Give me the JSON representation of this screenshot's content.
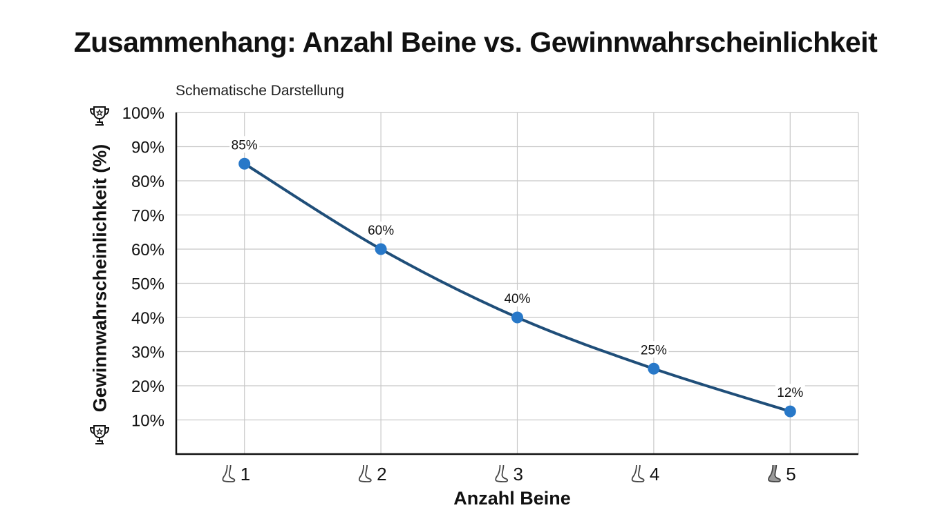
{
  "chart_data": {
    "type": "line",
    "title": "Zusammenhang: Anzahl Beine vs. Gewinnwahrscheinlichkeit",
    "subtitle": "Schematische Darstellung",
    "xlabel": "Anzahl Beine",
    "ylabel": "Gewinnwahrscheinlichkeit (%)",
    "x": [
      1,
      2,
      3,
      4,
      5
    ],
    "x_tick_labels": [
      "1",
      "2",
      "3",
      "4",
      "5"
    ],
    "y_tick_labels": [
      "100%",
      "90%",
      "80%",
      "70%",
      "60%",
      "50%",
      "40%",
      "30%",
      "20%",
      "10%"
    ],
    "y_ticks": [
      100,
      90,
      80,
      70,
      60,
      50,
      40,
      30,
      20,
      10
    ],
    "ylim": [
      0,
      100
    ],
    "xlim": [
      0.5,
      5.5
    ],
    "series": [
      {
        "values": [
          85,
          60,
          40,
          25,
          12.5
        ],
        "data_labels": [
          "85%",
          "60%",
          "40%",
          "25%",
          "12%"
        ]
      }
    ],
    "grid": true,
    "colors": {
      "line": "#1f4e79",
      "marker": "#2878c8",
      "grid": "#c8c8c8",
      "axis": "#111111",
      "leg_icon": "#444444",
      "leg_icon_last": "#9a9a9a"
    },
    "icons": {
      "y_axis_top": "trophy-icon",
      "y_axis_bottom": "trophy-icon",
      "x_ticks": "leg-icon"
    }
  }
}
